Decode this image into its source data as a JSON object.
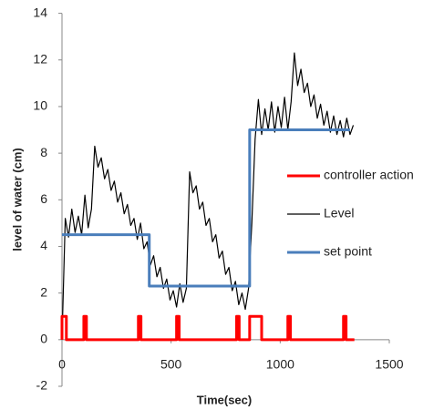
{
  "chart_data": {
    "type": "line",
    "xlabel": "Time(sec)",
    "ylabel": "level of water (cm)",
    "xlim": [
      0,
      1500
    ],
    "xticks": [
      0,
      500,
      1000,
      1500
    ],
    "ylim": [
      -2,
      14
    ],
    "yticks": [
      -2,
      0,
      2,
      4,
      6,
      8,
      10,
      12,
      14
    ],
    "grid": false,
    "legend": "right",
    "series": [
      {
        "name": "controller action",
        "color": "#ff0000",
        "width": 3,
        "x": [
          0,
          0,
          20,
          20,
          100,
          100,
          112,
          112,
          350,
          350,
          362,
          362,
          525,
          525,
          537,
          537,
          800,
          800,
          812,
          812,
          860,
          860,
          915,
          915,
          1035,
          1035,
          1047,
          1047,
          1290,
          1290,
          1302,
          1302,
          1340
        ],
        "values": [
          0,
          1,
          1,
          0,
          0,
          1,
          1,
          0,
          0,
          1,
          1,
          0,
          0,
          1,
          1,
          0,
          0,
          1,
          1,
          0,
          0,
          1,
          1,
          0,
          0,
          1,
          1,
          0,
          0,
          1,
          1,
          0,
          0
        ]
      },
      {
        "name": "Level",
        "color": "#000000",
        "width": 1.2,
        "x": [
          0,
          15,
          30,
          45,
          60,
          75,
          90,
          105,
          120,
          135,
          150,
          165,
          180,
          195,
          210,
          225,
          240,
          255,
          270,
          285,
          300,
          315,
          330,
          345,
          360,
          375,
          390,
          405,
          420,
          435,
          450,
          465,
          480,
          495,
          510,
          525,
          540,
          555,
          570,
          585,
          600,
          615,
          630,
          645,
          660,
          675,
          690,
          705,
          720,
          735,
          750,
          765,
          780,
          795,
          810,
          825,
          840,
          855,
          870,
          885,
          900,
          915,
          930,
          945,
          960,
          975,
          990,
          1005,
          1020,
          1035,
          1050,
          1065,
          1080,
          1095,
          1110,
          1125,
          1140,
          1155,
          1170,
          1185,
          1200,
          1215,
          1230,
          1245,
          1260,
          1275,
          1290,
          1305,
          1320,
          1335
        ],
        "values": [
          0,
          5.2,
          4.4,
          5.6,
          4.6,
          5.3,
          4.5,
          6.2,
          4.8,
          5.6,
          8.3,
          7.4,
          7.8,
          6.9,
          7.3,
          6.4,
          6.8,
          5.9,
          6.3,
          5.4,
          5.8,
          4.9,
          5.2,
          4.3,
          5.0,
          3.9,
          4.2,
          3.2,
          3.6,
          2.7,
          3.1,
          2.2,
          2.6,
          1.7,
          2.1,
          1.4,
          2.4,
          1.6,
          2.2,
          7.2,
          6.3,
          6.6,
          5.6,
          5.9,
          4.9,
          5.2,
          4.2,
          4.5,
          3.5,
          3.8,
          2.8,
          3.1,
          2.1,
          2.5,
          1.5,
          2.0,
          1.3,
          2.2,
          5.0,
          8.6,
          10.3,
          8.8,
          9.9,
          9.0,
          10.2,
          8.9,
          10.0,
          9.1,
          10.4,
          9.0,
          10.2,
          12.3,
          10.9,
          11.6,
          10.6,
          11.0,
          10.0,
          10.5,
          9.5,
          10.1,
          9.2,
          9.8,
          8.9,
          9.6,
          8.8,
          9.4,
          8.7,
          9.5,
          8.8,
          9.2
        ]
      },
      {
        "name": "set point",
        "color": "#4a7ebb",
        "width": 3,
        "x": [
          0,
          400,
          400,
          860,
          860,
          1320
        ],
        "values": [
          4.5,
          4.5,
          2.3,
          2.3,
          9,
          9
        ]
      }
    ]
  }
}
